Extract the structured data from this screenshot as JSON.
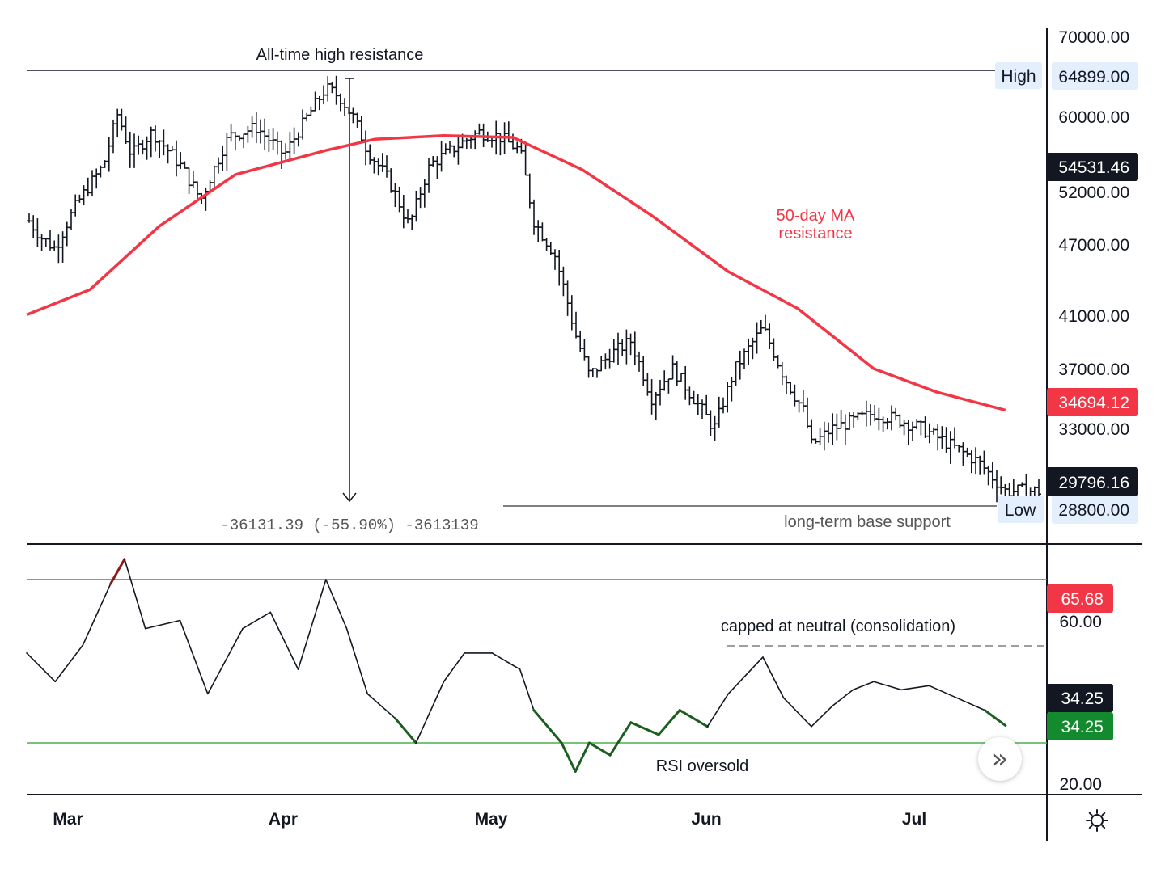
{
  "chart_data": [
    {
      "type": "ohlc",
      "price_scale": {
        "labels": [
          "70000.00",
          "60000.00",
          "52000.00",
          "47000.00",
          "41000.00",
          "37000.00",
          "33000.00"
        ],
        "levels": [
          70000,
          60000,
          52000,
          47000,
          41000,
          37000,
          33000
        ],
        "scale": "log"
      },
      "x_axis": {
        "months": [
          "Mar",
          "Apr",
          "May",
          "Jun",
          "Jul"
        ]
      },
      "annotations": {
        "ath": "All-time high resistance",
        "ma": [
          "50-day MA",
          "resistance"
        ],
        "support": "long-term base support",
        "measure": "-36131.39 (-55.90%) -3613139"
      },
      "badges": {
        "high": {
          "tag": "High",
          "value": "64899.00",
          "price": 64899
        },
        "low": {
          "tag": "Low",
          "value": "28800.00",
          "price": 28800
        },
        "top_dark": {
          "value": "54531.46",
          "price": 54531.46
        },
        "ma": {
          "value": "34694.12",
          "price": 34694.12
        },
        "last": {
          "value": "29796.16",
          "price": 29796.16
        }
      },
      "ma_series": [
        {
          "d": "Mar 1",
          "v": 41500
        },
        {
          "d": "Mar 10",
          "v": 43500
        },
        {
          "d": "Mar 20",
          "v": 49000
        },
        {
          "d": "Mar 31",
          "v": 54000
        },
        {
          "d": "Apr 13",
          "v": 56500
        },
        {
          "d": "Apr 20",
          "v": 57700
        },
        {
          "d": "Apr 30",
          "v": 58100
        },
        {
          "d": "May 10",
          "v": 57900
        },
        {
          "d": "May 20",
          "v": 54500
        },
        {
          "d": "May 30",
          "v": 50000
        },
        {
          "d": "Jun 10",
          "v": 45000
        },
        {
          "d": "Jun 20",
          "v": 42000
        },
        {
          "d": "Jul 1",
          "v": 37500
        },
        {
          "d": "Jul 10",
          "v": 35900
        },
        {
          "d": "Jul 20",
          "v": 34694.12
        }
      ],
      "ohlc_closes": [
        {
          "d": "Mar 1",
          "c": 49500
        },
        {
          "d": "Mar 3",
          "c": 48000
        },
        {
          "d": "Mar 5",
          "c": 47000
        },
        {
          "d": "Mar 8",
          "c": 51000
        },
        {
          "d": "Mar 12",
          "c": 55000
        },
        {
          "d": "Mar 14",
          "c": 60500
        },
        {
          "d": "Mar 16",
          "c": 56000
        },
        {
          "d": "Mar 19",
          "c": 58500
        },
        {
          "d": "Mar 23",
          "c": 55000
        },
        {
          "d": "Mar 26",
          "c": 51500
        },
        {
          "d": "Mar 30",
          "c": 58000
        },
        {
          "d": "Apr 3",
          "c": 59000
        },
        {
          "d": "Apr 7",
          "c": 56000
        },
        {
          "d": "Apr 10",
          "c": 59800
        },
        {
          "d": "Apr 13",
          "c": 63500
        },
        {
          "d": "Apr 15",
          "c": 62500
        },
        {
          "d": "Apr 17",
          "c": 60000
        },
        {
          "d": "Apr 19",
          "c": 56500
        },
        {
          "d": "Apr 22",
          "c": 53500
        },
        {
          "d": "Apr 25",
          "c": 49000
        },
        {
          "d": "Apr 28",
          "c": 55000
        },
        {
          "d": "May 2",
          "c": 57000
        },
        {
          "d": "May 5",
          "c": 58500
        },
        {
          "d": "May 8",
          "c": 58000
        },
        {
          "d": "May 11",
          "c": 56500
        },
        {
          "d": "May 13",
          "c": 49500
        },
        {
          "d": "May 16",
          "c": 46500
        },
        {
          "d": "May 19",
          "c": 40000
        },
        {
          "d": "May 21",
          "c": 37000
        },
        {
          "d": "May 24",
          "c": 38500
        },
        {
          "d": "May 27",
          "c": 39500
        },
        {
          "d": "May 30",
          "c": 35500
        },
        {
          "d": "Jun 2",
          "c": 37500
        },
        {
          "d": "Jun 5",
          "c": 35500
        },
        {
          "d": "Jun 8",
          "c": 33500
        },
        {
          "d": "Jun 11",
          "c": 37500
        },
        {
          "d": "Jun 15",
          "c": 40500
        },
        {
          "d": "Jun 18",
          "c": 37000
        },
        {
          "d": "Jun 21",
          "c": 34500
        },
        {
          "d": "Jun 22",
          "c": 32500
        },
        {
          "d": "Jun 25",
          "c": 33500
        },
        {
          "d": "Jun 28",
          "c": 34000
        },
        {
          "d": "Jul 1",
          "c": 34500
        },
        {
          "d": "Jul 5",
          "c": 34000
        },
        {
          "d": "Jul 8",
          "c": 33500
        },
        {
          "d": "Jul 12",
          "c": 32500
        },
        {
          "d": "Jul 16",
          "c": 31500
        },
        {
          "d": "Jul 20",
          "c": 29796.16
        }
      ]
    },
    {
      "type": "line",
      "name": "RSI",
      "scale_labels": [
        "60.00",
        "20.00"
      ],
      "levels": {
        "overbought": 70,
        "oversold": 30
      },
      "badges": {
        "ob": "65.68",
        "dark": "34.25",
        "green": "34.25"
      },
      "annotations": {
        "capped": "capped at neutral (consolidation)",
        "oversold": "RSI oversold"
      },
      "values": [
        {
          "d": "Mar 1",
          "v": 52
        },
        {
          "d": "Mar 5",
          "v": 45
        },
        {
          "d": "Mar 9",
          "v": 54
        },
        {
          "d": "Mar 13",
          "v": 69
        },
        {
          "d": "Mar 15",
          "v": 75
        },
        {
          "d": "Mar 18",
          "v": 58
        },
        {
          "d": "Mar 23",
          "v": 60
        },
        {
          "d": "Mar 27",
          "v": 42
        },
        {
          "d": "Apr 1",
          "v": 58
        },
        {
          "d": "Apr 5",
          "v": 62
        },
        {
          "d": "Apr 9",
          "v": 48
        },
        {
          "d": "Apr 13",
          "v": 70
        },
        {
          "d": "Apr 16",
          "v": 58
        },
        {
          "d": "Apr 19",
          "v": 42
        },
        {
          "d": "Apr 23",
          "v": 36
        },
        {
          "d": "Apr 26",
          "v": 30
        },
        {
          "d": "Apr 30",
          "v": 45
        },
        {
          "d": "May 3",
          "v": 52
        },
        {
          "d": "May 7",
          "v": 52
        },
        {
          "d": "May 11",
          "v": 48
        },
        {
          "d": "May 13",
          "v": 38
        },
        {
          "d": "May 17",
          "v": 30
        },
        {
          "d": "May 19",
          "v": 23
        },
        {
          "d": "May 21",
          "v": 30
        },
        {
          "d": "May 24",
          "v": 27
        },
        {
          "d": "May 27",
          "v": 35
        },
        {
          "d": "May 31",
          "v": 32
        },
        {
          "d": "Jun 3",
          "v": 38
        },
        {
          "d": "Jun 7",
          "v": 34
        },
        {
          "d": "Jun 10",
          "v": 42
        },
        {
          "d": "Jun 15",
          "v": 51
        },
        {
          "d": "Jun 18",
          "v": 41
        },
        {
          "d": "Jun 22",
          "v": 34
        },
        {
          "d": "Jun 25",
          "v": 39
        },
        {
          "d": "Jun 28",
          "v": 43
        },
        {
          "d": "Jul 1",
          "v": 45
        },
        {
          "d": "Jul 5",
          "v": 43
        },
        {
          "d": "Jul 9",
          "v": 44
        },
        {
          "d": "Jul 13",
          "v": 41
        },
        {
          "d": "Jul 17",
          "v": 38
        },
        {
          "d": "Jul 20",
          "v": 34.25
        }
      ]
    }
  ],
  "colors": {
    "ma": "#f23645",
    "rsi_upper": "#f23645",
    "rsi_lower": "#4caf50",
    "overbought_line": "#8b1a1a",
    "oversold_line": "#1b5e20",
    "badge_dark": "#131722",
    "badge_green": "#138a2e",
    "badge_light": "#e3effd"
  },
  "ui": {
    "scroll_icon": "double-chevron-right-icon",
    "settings_icon": "sun-gear-icon"
  }
}
